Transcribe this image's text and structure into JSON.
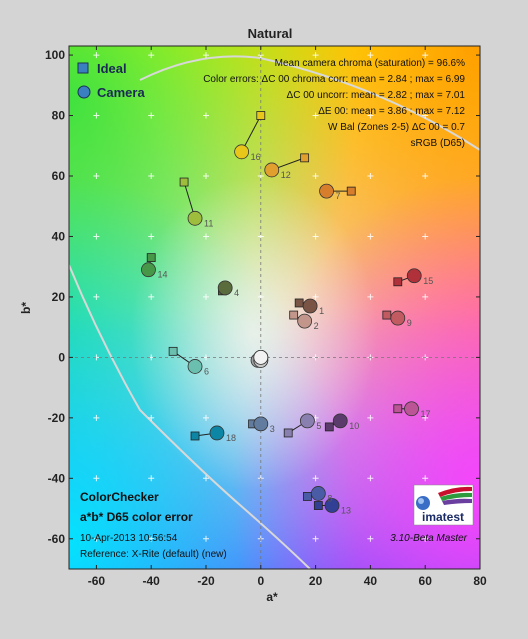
{
  "chart_data": {
    "type": "scatter",
    "title": "Natural",
    "xlabel": "a*",
    "ylabel": "b*",
    "xlim": [
      -70,
      80
    ],
    "ylim": [
      -70,
      103
    ],
    "x_ticks": [
      -60,
      -40,
      -20,
      0,
      20,
      40,
      60,
      80
    ],
    "y_ticks": [
      -60,
      -40,
      -20,
      0,
      20,
      40,
      60,
      80,
      100
    ],
    "legend": {
      "position": "top-left",
      "entries": [
        {
          "label": "Ideal",
          "marker": "square",
          "color": "#3a7fc0"
        },
        {
          "label": "Camera",
          "marker": "circle",
          "color": "#3a7fc0"
        }
      ]
    },
    "stats_lines": [
      "Mean camera chroma (saturation) = 96.6%",
      "Color errors: ΔC 00 chroma corr:  mean = 2.84 ;  max = 6.99",
      "ΔC 00 uncorr:  mean = 2.82 ;  max = 7.01",
      "ΔE 00:  mean = 3.86 ;  max = 7.12",
      "W Bal (Zones 2-5) ΔC 00 = 0.7",
      "sRGB (D65)"
    ],
    "bottom_left": {
      "title": "ColorChecker",
      "subtitle": "a*b* D65 color error",
      "date": "10-Apr-2013 10:56:54",
      "reference": "Reference: X-Rite (default) (new)"
    },
    "logo_text": "imatest",
    "version": "3.10-Beta  Master",
    "patches": [
      {
        "id": "1",
        "ideal": [
          14,
          18
        ],
        "camera": [
          18,
          17
        ],
        "color": "#7a5546"
      },
      {
        "id": "2",
        "ideal": [
          12,
          14
        ],
        "camera": [
          16,
          12
        ],
        "color": "#c2968a"
      },
      {
        "id": "3",
        "ideal": [
          -3,
          -22
        ],
        "camera": [
          0,
          -22
        ],
        "color": "#627ca0"
      },
      {
        "id": "4",
        "ideal": [
          -14,
          22
        ],
        "camera": [
          -13,
          23
        ],
        "color": "#5a6b3c"
      },
      {
        "id": "5",
        "ideal": [
          10,
          -25
        ],
        "camera": [
          17,
          -21
        ],
        "color": "#8a80b0"
      },
      {
        "id": "6",
        "ideal": [
          -32,
          2
        ],
        "camera": [
          -24,
          -3
        ],
        "color": "#6abfaf"
      },
      {
        "id": "7",
        "ideal": [
          33,
          55
        ],
        "camera": [
          24,
          55
        ],
        "color": "#d67e2c"
      },
      {
        "id": "8",
        "ideal": [
          17,
          -46
        ],
        "camera": [
          21,
          -45
        ],
        "color": "#4b5ca6"
      },
      {
        "id": "9",
        "ideal": [
          46,
          14
        ],
        "camera": [
          50,
          13
        ],
        "color": "#c25a62"
      },
      {
        "id": "10",
        "ideal": [
          25,
          -23
        ],
        "camera": [
          29,
          -21
        ],
        "color": "#5b3b6b"
      },
      {
        "id": "11",
        "ideal": [
          -28,
          58
        ],
        "camera": [
          -24,
          46
        ],
        "color": "#9fbd3d"
      },
      {
        "id": "12",
        "ideal": [
          16,
          66
        ],
        "camera": [
          4,
          62
        ],
        "color": "#e1a02e"
      },
      {
        "id": "13",
        "ideal": [
          21,
          -49
        ],
        "camera": [
          26,
          -49
        ],
        "color": "#313f95"
      },
      {
        "id": "14",
        "ideal": [
          -40,
          33
        ],
        "camera": [
          -41,
          29
        ],
        "color": "#469848"
      },
      {
        "id": "15",
        "ideal": [
          50,
          25
        ],
        "camera": [
          56,
          27
        ],
        "color": "#b1313b"
      },
      {
        "id": "16",
        "ideal": [
          0,
          80
        ],
        "camera": [
          -7,
          68
        ],
        "color": "#e8c71a"
      },
      {
        "id": "17",
        "ideal": [
          50,
          -17
        ],
        "camera": [
          55,
          -17
        ],
        "color": "#bb5595"
      },
      {
        "id": "18",
        "ideal": [
          -24,
          -26
        ],
        "camera": [
          -16,
          -25
        ],
        "color": "#0d86a6"
      },
      {
        "id": "19",
        "ideal": [
          0,
          0
        ],
        "camera": [
          0,
          0
        ],
        "color": "#f2f2f2"
      },
      {
        "id": "20",
        "ideal": [
          0,
          0
        ],
        "camera": [
          0,
          -1
        ],
        "color": "#c8c8c8"
      },
      {
        "id": "21",
        "ideal": [
          0,
          0
        ],
        "camera": [
          -1,
          -1
        ],
        "color": "#a0a0a0"
      },
      {
        "id": "22",
        "ideal": [
          0,
          0
        ],
        "camera": [
          0,
          0
        ],
        "color": "#7a7a7a"
      },
      {
        "id": "23",
        "ideal": [
          0,
          0
        ],
        "camera": [
          0,
          -1
        ],
        "color": "#555555"
      },
      {
        "id": "24",
        "ideal": [
          0,
          0
        ],
        "camera": [
          0,
          0
        ],
        "color": "#343434"
      }
    ]
  }
}
